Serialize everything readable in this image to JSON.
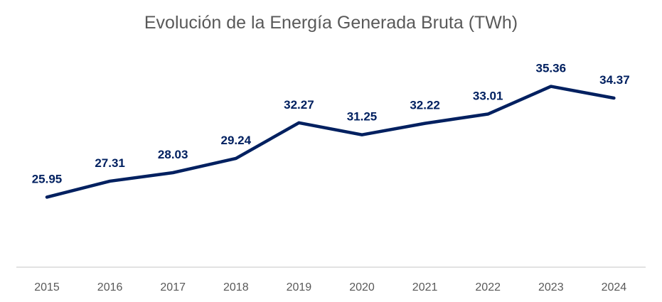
{
  "chart_data": {
    "type": "line",
    "title": "Evolución de la Energía Generada Bruta (TWh)",
    "xlabel": "",
    "ylabel": "",
    "categories": [
      "2015",
      "2016",
      "2017",
      "2018",
      "2019",
      "2020",
      "2021",
      "2022",
      "2023",
      "2024"
    ],
    "series": [
      {
        "values": [
          25.95,
          27.31,
          28.03,
          29.24,
          32.27,
          31.25,
          32.22,
          33.01,
          35.36,
          34.37
        ],
        "color": "#002060"
      }
    ],
    "data_labels": [
      "25.95",
      "27.31",
      "28.03",
      "29.24",
      "32.27",
      "31.25",
      "32.22",
      "33.01",
      "35.36",
      "34.37"
    ],
    "ylim": [
      20,
      36
    ],
    "y_axis_visible": false,
    "grid": false,
    "legend": "none",
    "axis_color": "#d9d9d9",
    "title_color": "#595959"
  }
}
